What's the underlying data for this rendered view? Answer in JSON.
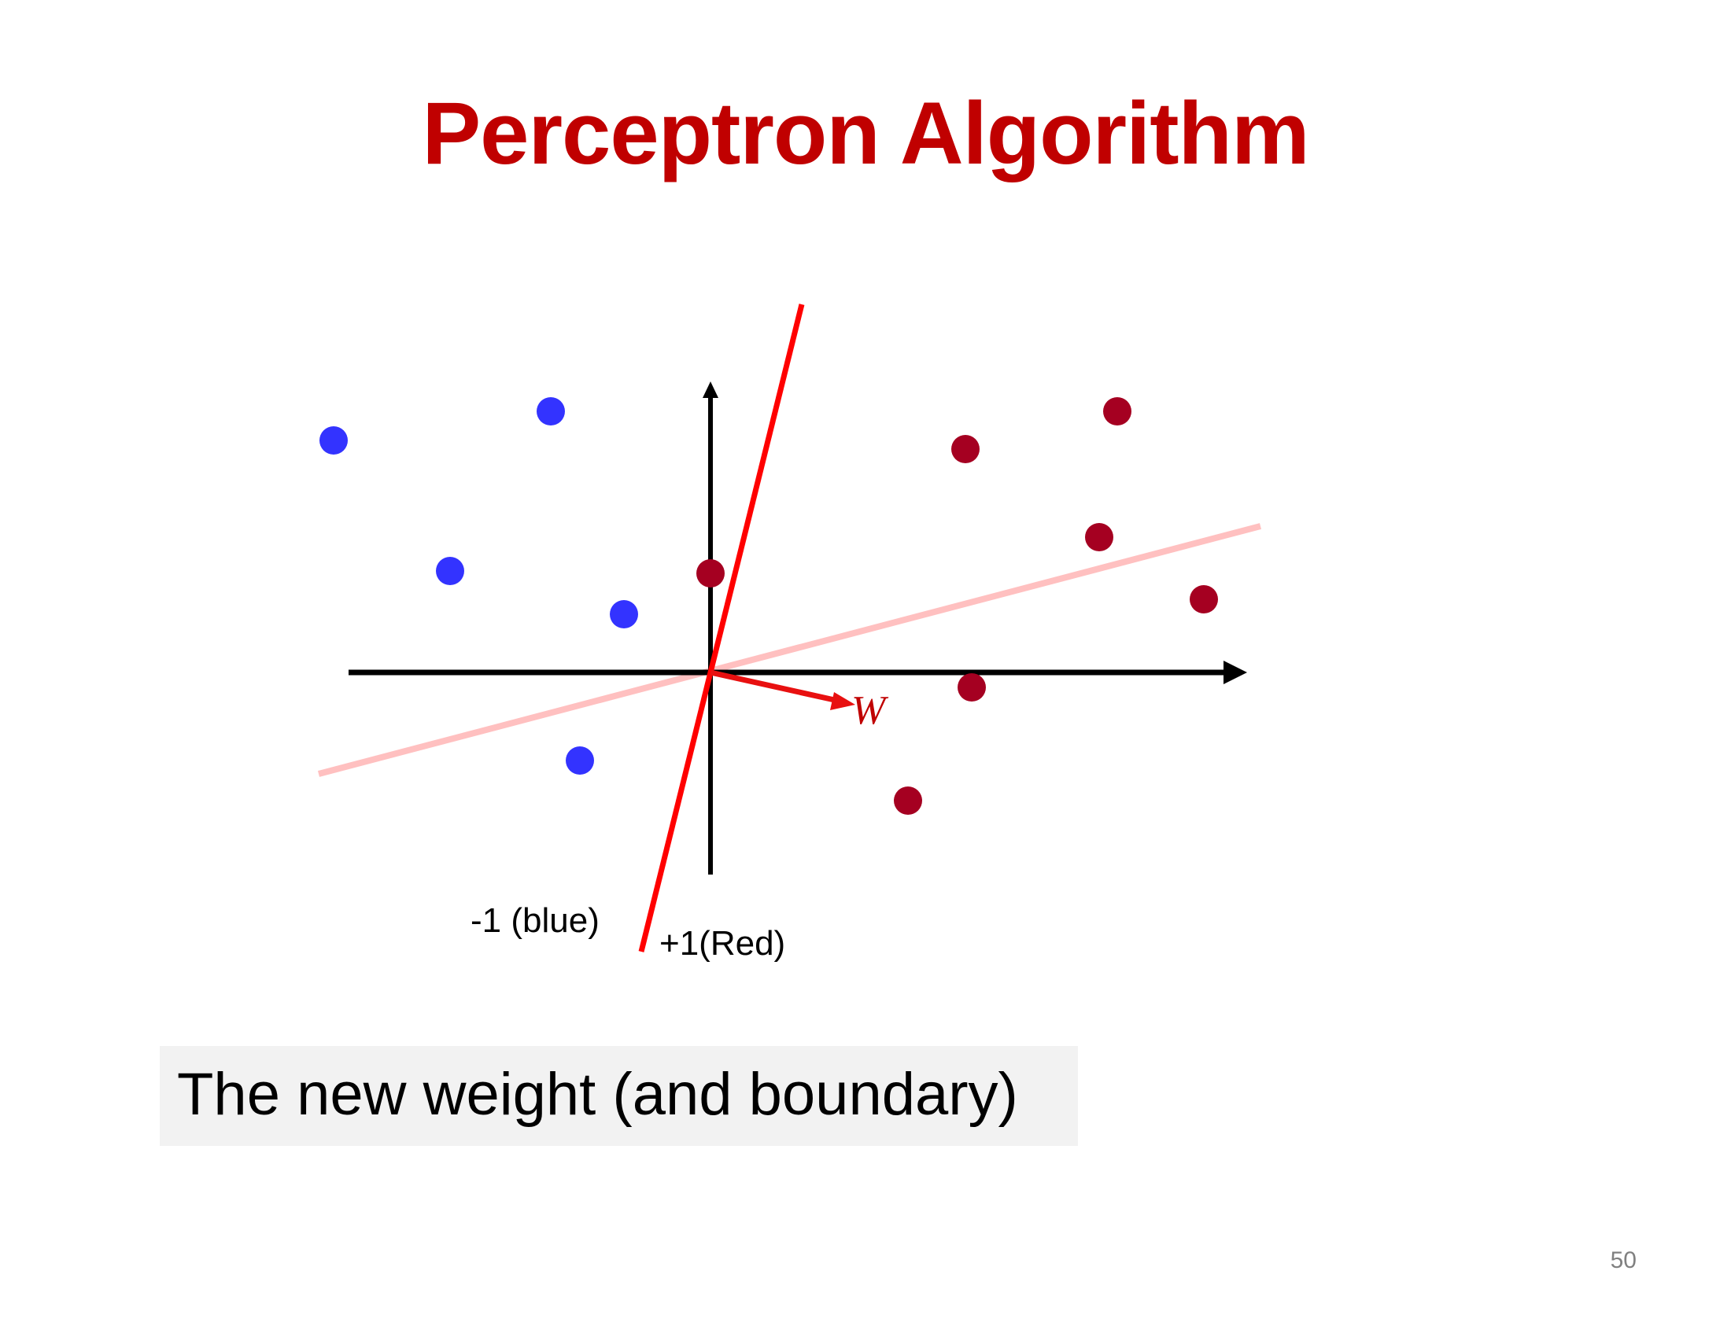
{
  "slide": {
    "title": "Perceptron Algorithm",
    "caption": "The new weight (and boundary)",
    "page_number": "50"
  },
  "diagram": {
    "weight_label": "W",
    "label_negative": "-1 (blue)",
    "label_positive": "+1(Red)"
  },
  "colors": {
    "title": "#c00000",
    "blue_points": "#3333ff",
    "red_points": "#a50021",
    "new_boundary": "#ff0000",
    "old_boundary": "#ffc0c0",
    "weight_vector": "#e81010",
    "axes": "#000000",
    "caption_background": "#f2f2f2"
  }
}
